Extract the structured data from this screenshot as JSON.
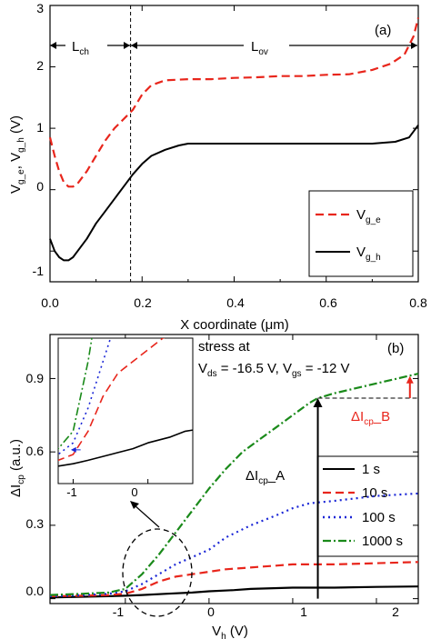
{
  "chart_data": [
    {
      "type": "line",
      "panel_label": "(a)",
      "xlabel": "X coordinate (μm)",
      "ylabel_parts": [
        "V",
        "g_e",
        ", V",
        "g_h",
        " (V)"
      ],
      "xlim": [
        0.0,
        0.8
      ],
      "ylim": [
        -1.5,
        3.0
      ],
      "xticks": [
        "0.0",
        "0.2",
        "0.4",
        "0.6",
        "0.8"
      ],
      "yticks": [
        "-1",
        "0",
        "1",
        "2",
        "3"
      ],
      "region_labels": [
        {
          "text": "L",
          "sub": "ch"
        },
        {
          "text": "L",
          "sub": "ov"
        }
      ],
      "divider_x": 0.175,
      "series": [
        {
          "name_parts": [
            "V",
            "g_e"
          ],
          "color": "#e8261c",
          "dash": "dashed",
          "x": [
            0.0,
            0.01,
            0.02,
            0.03,
            0.04,
            0.05,
            0.06,
            0.08,
            0.1,
            0.12,
            0.14,
            0.16,
            0.18,
            0.2,
            0.22,
            0.25,
            0.3,
            0.35,
            0.4,
            0.45,
            0.5,
            0.55,
            0.6,
            0.65,
            0.7,
            0.74,
            0.77,
            0.79,
            0.8
          ],
          "y": [
            0.85,
            0.55,
            0.3,
            0.12,
            0.05,
            0.05,
            0.1,
            0.3,
            0.55,
            0.8,
            1.0,
            1.15,
            1.3,
            1.55,
            1.7,
            1.78,
            1.8,
            1.8,
            1.82,
            1.83,
            1.85,
            1.85,
            1.87,
            1.88,
            1.95,
            2.05,
            2.2,
            2.5,
            2.8
          ]
        },
        {
          "name_parts": [
            "V",
            "g_h"
          ],
          "color": "#000000",
          "dash": "solid",
          "x": [
            0.0,
            0.01,
            0.02,
            0.03,
            0.04,
            0.05,
            0.06,
            0.08,
            0.1,
            0.12,
            0.14,
            0.16,
            0.18,
            0.2,
            0.22,
            0.25,
            0.28,
            0.3,
            0.35,
            0.4,
            0.5,
            0.6,
            0.7,
            0.75,
            0.78,
            0.8
          ],
          "y": [
            -0.8,
            -1.0,
            -1.1,
            -1.15,
            -1.15,
            -1.1,
            -1.0,
            -0.8,
            -0.55,
            -0.35,
            -0.15,
            0.05,
            0.25,
            0.42,
            0.55,
            0.65,
            0.72,
            0.75,
            0.75,
            0.75,
            0.75,
            0.75,
            0.75,
            0.78,
            0.85,
            1.05
          ]
        }
      ]
    },
    {
      "type": "line",
      "panel_label": "(b)",
      "xlabel_parts": [
        "V",
        "h",
        " (V)"
      ],
      "ylabel_parts": [
        "ΔI",
        "cp",
        " (a.u.)"
      ],
      "xlim": [
        -1.9,
        2.5
      ],
      "ylim": [
        -0.02,
        1.08
      ],
      "xticks": [
        "-1",
        "0",
        "1",
        "2"
      ],
      "yticks": [
        "0.0",
        "0.3",
        "0.6",
        "0.9"
      ],
      "annotation_line1": "stress at",
      "annotation_line2_parts": [
        "V",
        "ds",
        " = -16.5 V, V",
        "gs",
        " = -12 V"
      ],
      "delta_a_parts": [
        "ΔI",
        "cp",
        "_A"
      ],
      "delta_b_parts": [
        "ΔI",
        "cp",
        "_B"
      ],
      "series": [
        {
          "name": "1 s",
          "color": "#000000",
          "dash": "solid",
          "x": [
            -1.9,
            -1.5,
            -1.2,
            -1.0,
            -0.8,
            -0.5,
            -0.2,
            0.0,
            0.3,
            0.5,
            1.0,
            1.5,
            2.0,
            2.5
          ],
          "y": [
            0.005,
            0.008,
            0.01,
            0.012,
            0.015,
            0.02,
            0.025,
            0.03,
            0.035,
            0.04,
            0.045,
            0.045,
            0.048,
            0.05
          ]
        },
        {
          "name": "10 s",
          "color": "#e8261c",
          "dash": "dashed",
          "x": [
            -1.9,
            -1.5,
            -1.2,
            -1.0,
            -0.8,
            -0.6,
            -0.4,
            -0.2,
            0.0,
            0.2,
            0.4,
            0.6,
            0.8,
            1.0,
            1.5,
            2.0,
            2.5
          ],
          "y": [
            0.01,
            0.012,
            0.015,
            0.02,
            0.04,
            0.07,
            0.09,
            0.1,
            0.11,
            0.12,
            0.125,
            0.13,
            0.135,
            0.14,
            0.14,
            0.145,
            0.15
          ]
        },
        {
          "name": "100 s",
          "color": "#1a26d6",
          "dash": "dotted",
          "x": [
            -1.9,
            -1.5,
            -1.2,
            -1.0,
            -0.8,
            -0.6,
            -0.4,
            -0.2,
            0.0,
            0.2,
            0.5,
            0.8,
            1.0,
            1.2,
            1.5,
            2.0,
            2.5
          ],
          "y": [
            0.01,
            0.015,
            0.02,
            0.03,
            0.06,
            0.1,
            0.14,
            0.17,
            0.2,
            0.25,
            0.3,
            0.34,
            0.37,
            0.39,
            0.4,
            0.42,
            0.43
          ]
        },
        {
          "name": "1000 s",
          "color": "#1a8a1a",
          "dash": "dashdot",
          "x": [
            -1.9,
            -1.5,
            -1.2,
            -1.0,
            -0.8,
            -0.6,
            -0.4,
            -0.2,
            0.0,
            0.2,
            0.4,
            0.6,
            0.8,
            1.0,
            1.2,
            1.3,
            1.5,
            2.0,
            2.5
          ],
          "y": [
            0.015,
            0.02,
            0.025,
            0.04,
            0.1,
            0.18,
            0.27,
            0.36,
            0.45,
            0.53,
            0.6,
            0.65,
            0.7,
            0.75,
            0.8,
            0.82,
            0.84,
            0.88,
            0.92
          ]
        }
      ],
      "inset": {
        "xlim": [
          -1.2,
          0.6
        ],
        "ylim": [
          -0.005,
          0.12
        ],
        "xticks": [
          "-1",
          "0"
        ]
      }
    }
  ]
}
